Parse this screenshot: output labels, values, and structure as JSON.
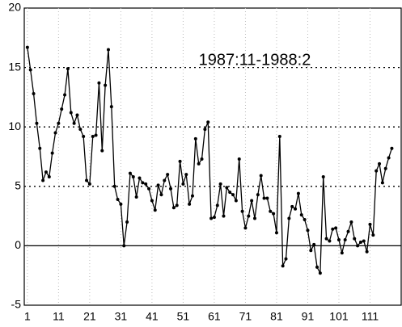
{
  "chart_data": {
    "type": "line",
    "annotation": "1987:11-1988:2",
    "x": [
      1,
      2,
      3,
      4,
      5,
      6,
      7,
      8,
      9,
      10,
      11,
      12,
      13,
      14,
      15,
      16,
      17,
      18,
      19,
      20,
      21,
      22,
      23,
      24,
      25,
      26,
      27,
      28,
      29,
      30,
      31,
      32,
      33,
      34,
      35,
      36,
      37,
      38,
      39,
      40,
      41,
      42,
      43,
      44,
      45,
      46,
      47,
      48,
      49,
      50,
      51,
      52,
      53,
      54,
      55,
      56,
      57,
      58,
      59,
      60,
      61,
      62,
      63,
      64,
      65,
      66,
      67,
      68,
      69,
      70,
      71,
      72,
      73,
      74,
      75,
      76,
      77,
      78,
      79,
      80,
      81,
      82,
      83,
      84,
      85,
      86,
      87,
      88,
      89,
      90,
      91,
      92,
      93,
      94,
      95,
      96,
      97,
      98,
      99,
      100,
      101,
      102,
      103,
      104,
      105,
      106,
      107,
      108,
      109,
      110,
      111,
      112,
      113,
      114,
      115,
      116,
      117,
      118
    ],
    "series": [
      {
        "color": "#000000",
        "values": [
          16.7,
          14.8,
          12.8,
          10.3,
          8.2,
          5.5,
          6.2,
          5.8,
          7.8,
          9.5,
          10.3,
          11.5,
          12.7,
          14.9,
          11.2,
          10.3,
          11,
          9.8,
          9.2,
          5.5,
          5.2,
          9.2,
          9.3,
          13.7,
          8,
          13.5,
          16.5,
          11.7,
          5,
          3.9,
          3.5,
          0,
          2,
          6.1,
          5.8,
          4.1,
          5.7,
          5.3,
          5.2,
          4.8,
          3.8,
          3,
          5.1,
          4.3,
          5.5,
          6,
          4.8,
          3.2,
          3.4,
          7.1,
          5.2,
          6,
          3.5,
          4.2,
          9,
          6.9,
          7.3,
          9.8,
          10.4,
          2.3,
          2.4,
          3.4,
          5.2,
          2.5,
          4.9,
          4.5,
          4.3,
          3.8,
          7.3,
          2.9,
          1.5,
          2.5,
          3.8,
          2.3,
          4.3,
          5.9,
          4,
          4,
          2.9,
          2.7,
          1.1,
          9.2,
          -1.7,
          -1.1,
          2.3,
          3.3,
          3.1,
          4.4,
          2.6,
          2.2,
          1.3,
          -0.4,
          0.1,
          -1.8,
          -2.3,
          5.8,
          0.6,
          0.4,
          1.4,
          1.5,
          0.5,
          -0.6,
          0.5,
          1.2,
          2,
          0.6,
          0,
          0.3,
          0.4,
          -0.5,
          1.8,
          0.9,
          6.3,
          6.9,
          5.3,
          6.5,
          7.4,
          8.2
        ]
      }
    ],
    "xlim": [
      0,
      121
    ],
    "xticks": [
      1,
      11,
      21,
      31,
      41,
      51,
      61,
      71,
      81,
      91,
      101,
      111
    ],
    "ylim": [
      -5,
      20
    ],
    "yticks": [
      -5,
      0,
      5,
      10,
      15,
      20
    ],
    "grid": true
  }
}
